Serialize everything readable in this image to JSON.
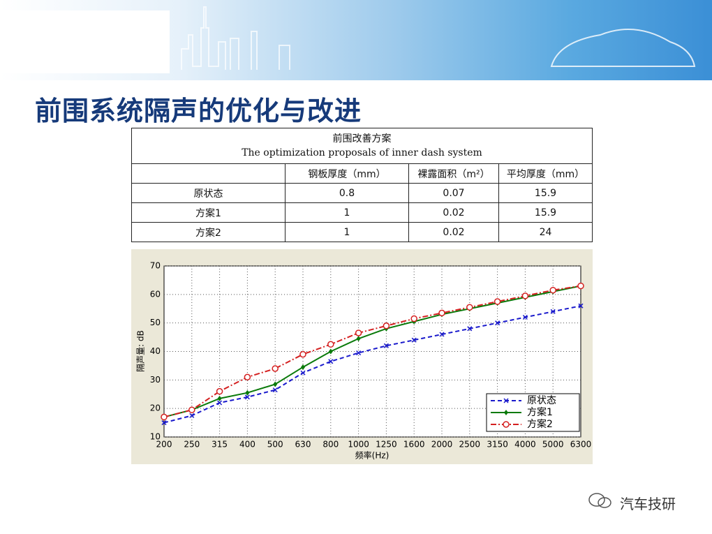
{
  "title": "前围系统隔声的优化与改进",
  "table": {
    "caption": [
      "前围改善方案",
      "The optimization proposals of inner dash system"
    ],
    "columns": [
      "钢板厚度（mm）",
      "裸露面积（m²）",
      "平均厚度（mm）"
    ],
    "rows": [
      [
        "原状态",
        "0.8",
        "0.07",
        "15.9"
      ],
      [
        "方案1",
        "1",
        "0.02",
        "15.9"
      ],
      [
        "方案2",
        "1",
        "0.02",
        "24"
      ]
    ]
  },
  "chart_data": {
    "type": "line",
    "ylabel": "隔声量: dB",
    "xlabel": "频率(Hz)",
    "categories": [
      "200",
      "250",
      "315",
      "400",
      "500",
      "630",
      "800",
      "1000",
      "1250",
      "1600",
      "2000",
      "2500",
      "3150",
      "4000",
      "5000",
      "6300"
    ],
    "ylim": [
      10,
      70
    ],
    "yticks": [
      10,
      20,
      30,
      40,
      50,
      60,
      70
    ],
    "grid": true,
    "legend": "lower-right",
    "series": [
      {
        "name": "原状态",
        "color": "#1a1acc",
        "values": [
          15,
          17.5,
          22,
          24,
          26.5,
          32.5,
          36.5,
          39.5,
          42,
          44,
          46,
          48,
          50,
          52,
          54,
          56
        ]
      },
      {
        "name": "方案1",
        "color": "#0a7a0a",
        "values": [
          17,
          19.5,
          23.5,
          25.5,
          28.5,
          34.5,
          40,
          44.5,
          48,
          50.5,
          53,
          55,
          57,
          59,
          61,
          63
        ]
      },
      {
        "name": "方案2",
        "color": "#d42020",
        "values": [
          17,
          19.5,
          26,
          31,
          34,
          39,
          42.5,
          46.5,
          49,
          51.5,
          53.5,
          55.5,
          57.5,
          59.5,
          61.5,
          63
        ]
      }
    ]
  },
  "watermark": "汽车技研"
}
